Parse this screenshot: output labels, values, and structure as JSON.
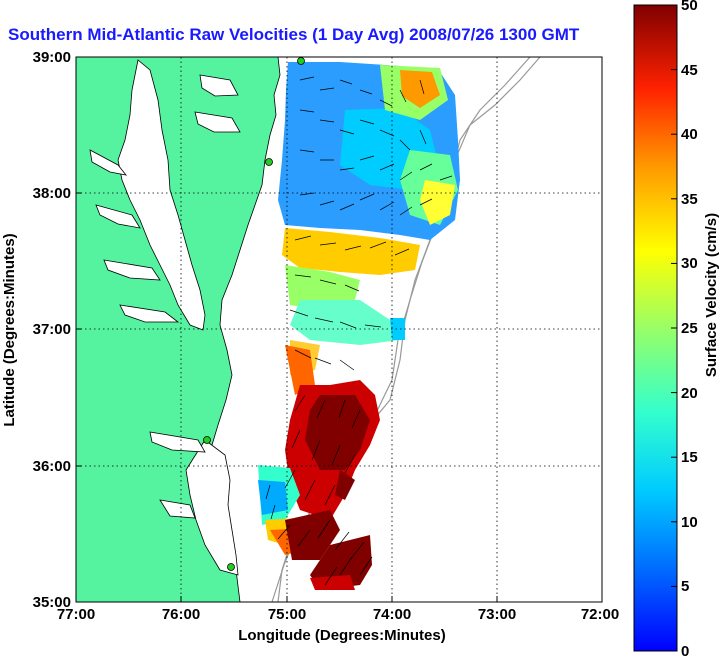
{
  "title": "Southern Mid-Atlantic Raw Velocities (1 Day Avg) 2008/07/26 1300 GMT",
  "map": {
    "xlabel": "Longitude (Degrees:Minutes)",
    "ylabel": "Latitude (Degrees:Minutes)",
    "x_ticks": [
      "77:00",
      "76:00",
      "75:00",
      "74:00",
      "73:00",
      "72:00"
    ],
    "y_ticks": [
      "39:00",
      "38:00",
      "37:00",
      "36:00",
      "35:00"
    ],
    "grid": true,
    "land_color": "#55f2a0",
    "station_color": "#22cc22"
  },
  "colorbar": {
    "label": "Surface Velocity (cm/s)",
    "ticks": [
      "50",
      "45",
      "40",
      "35",
      "30",
      "25",
      "20",
      "15",
      "10",
      "5",
      "0"
    ],
    "range": [
      0,
      50
    ],
    "colormap": "jet"
  }
}
